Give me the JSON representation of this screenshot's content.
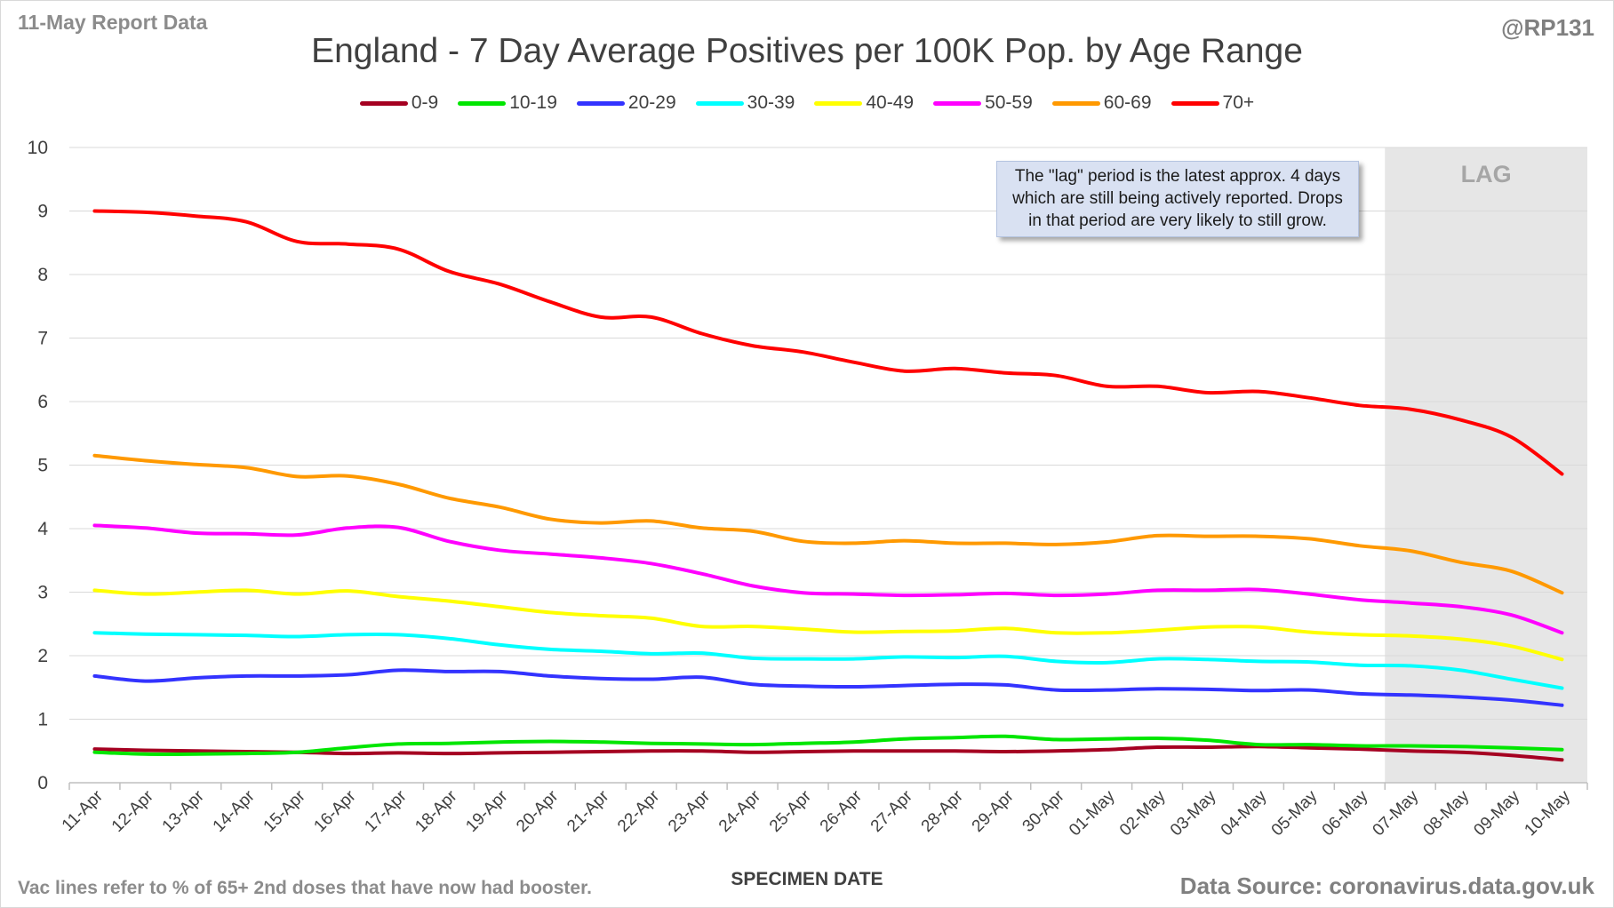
{
  "header": {
    "report_label": "11-May Report Data",
    "handle": "@RP131",
    "title": "England - 7 Day Average Positives per 100K Pop. by Age Range"
  },
  "footer": {
    "note": "Vac lines refer to % of 65+ 2nd doses that have now had booster.",
    "source": "Data Source: coronavirus.data.gov.uk"
  },
  "annotation": {
    "lag_label": "LAG",
    "note_line1": "The \"lag\" period is the latest approx. 4 days",
    "note_line2": "which are still being actively reported.  Drops",
    "note_line3": "in that period are very likely to still grow."
  },
  "chart_data": {
    "type": "line",
    "title": "England - 7 Day Average Positives per 100K Pop. by Age Range",
    "xlabel": "SPECIMEN DATE",
    "ylabel": "",
    "ylim": [
      0,
      10
    ],
    "yticks": [
      0,
      1,
      2,
      3,
      4,
      5,
      6,
      7,
      8,
      9,
      10
    ],
    "grid": true,
    "legend_position": "top",
    "lag_start": "07-May",
    "lag_end": "10-May",
    "categories": [
      "11-Apr",
      "12-Apr",
      "13-Apr",
      "14-Apr",
      "15-Apr",
      "16-Apr",
      "17-Apr",
      "18-Apr",
      "19-Apr",
      "20-Apr",
      "21-Apr",
      "22-Apr",
      "23-Apr",
      "24-Apr",
      "25-Apr",
      "26-Apr",
      "27-Apr",
      "28-Apr",
      "29-Apr",
      "30-Apr",
      "01-May",
      "02-May",
      "03-May",
      "04-May",
      "05-May",
      "06-May",
      "07-May",
      "08-May",
      "09-May",
      "10-May"
    ],
    "series": [
      {
        "name": "0-9",
        "color": "#a50021",
        "values": [
          0.53,
          0.51,
          0.5,
          0.49,
          0.48,
          0.46,
          0.47,
          0.46,
          0.47,
          0.48,
          0.49,
          0.5,
          0.5,
          0.48,
          0.49,
          0.5,
          0.5,
          0.5,
          0.49,
          0.5,
          0.52,
          0.56,
          0.56,
          0.57,
          0.55,
          0.53,
          0.5,
          0.48,
          0.43,
          0.36
        ]
      },
      {
        "name": "10-19",
        "color": "#00e600",
        "values": [
          0.48,
          0.45,
          0.45,
          0.46,
          0.48,
          0.55,
          0.61,
          0.62,
          0.64,
          0.65,
          0.64,
          0.62,
          0.61,
          0.6,
          0.62,
          0.64,
          0.69,
          0.71,
          0.73,
          0.68,
          0.69,
          0.7,
          0.67,
          0.6,
          0.6,
          0.58,
          0.58,
          0.57,
          0.55,
          0.52
        ]
      },
      {
        "name": "20-29",
        "color": "#3333ff",
        "values": [
          1.68,
          1.6,
          1.65,
          1.68,
          1.68,
          1.7,
          1.77,
          1.75,
          1.75,
          1.68,
          1.64,
          1.63,
          1.66,
          1.55,
          1.52,
          1.51,
          1.53,
          1.55,
          1.54,
          1.46,
          1.46,
          1.48,
          1.47,
          1.45,
          1.46,
          1.4,
          1.38,
          1.35,
          1.3,
          1.22
        ]
      },
      {
        "name": "30-39",
        "color": "#00ffff",
        "values": [
          2.36,
          2.34,
          2.33,
          2.32,
          2.3,
          2.33,
          2.33,
          2.27,
          2.17,
          2.1,
          2.07,
          2.03,
          2.04,
          1.96,
          1.95,
          1.95,
          1.98,
          1.97,
          1.99,
          1.91,
          1.89,
          1.95,
          1.94,
          1.91,
          1.9,
          1.85,
          1.84,
          1.77,
          1.63,
          1.49
        ]
      },
      {
        "name": "40-49",
        "color": "#ffff00",
        "values": [
          3.03,
          2.97,
          3.0,
          3.03,
          2.97,
          3.02,
          2.93,
          2.86,
          2.77,
          2.68,
          2.63,
          2.59,
          2.46,
          2.46,
          2.42,
          2.37,
          2.38,
          2.39,
          2.43,
          2.36,
          2.36,
          2.4,
          2.45,
          2.45,
          2.37,
          2.33,
          2.31,
          2.26,
          2.15,
          1.94
        ]
      },
      {
        "name": "50-59",
        "color": "#ff00ff",
        "values": [
          4.05,
          4.01,
          3.93,
          3.92,
          3.9,
          4.01,
          4.02,
          3.8,
          3.66,
          3.6,
          3.54,
          3.45,
          3.29,
          3.1,
          2.99,
          2.97,
          2.95,
          2.96,
          2.98,
          2.95,
          2.97,
          3.03,
          3.03,
          3.04,
          2.97,
          2.88,
          2.83,
          2.77,
          2.64,
          2.36
        ]
      },
      {
        "name": "60-69",
        "color": "#ff9900",
        "values": [
          5.15,
          5.07,
          5.01,
          4.96,
          4.82,
          4.83,
          4.7,
          4.48,
          4.34,
          4.15,
          4.09,
          4.12,
          4.01,
          3.96,
          3.8,
          3.77,
          3.81,
          3.77,
          3.77,
          3.75,
          3.79,
          3.89,
          3.88,
          3.88,
          3.84,
          3.73,
          3.65,
          3.47,
          3.33,
          2.99
        ]
      },
      {
        "name": "70+",
        "color": "#ff0000",
        "values": [
          9.0,
          8.98,
          8.92,
          8.83,
          8.52,
          8.48,
          8.4,
          8.05,
          7.85,
          7.57,
          7.33,
          7.33,
          7.07,
          6.88,
          6.78,
          6.62,
          6.48,
          6.52,
          6.45,
          6.41,
          6.24,
          6.24,
          6.14,
          6.16,
          6.06,
          5.94,
          5.88,
          5.71,
          5.44,
          4.86
        ]
      }
    ]
  }
}
